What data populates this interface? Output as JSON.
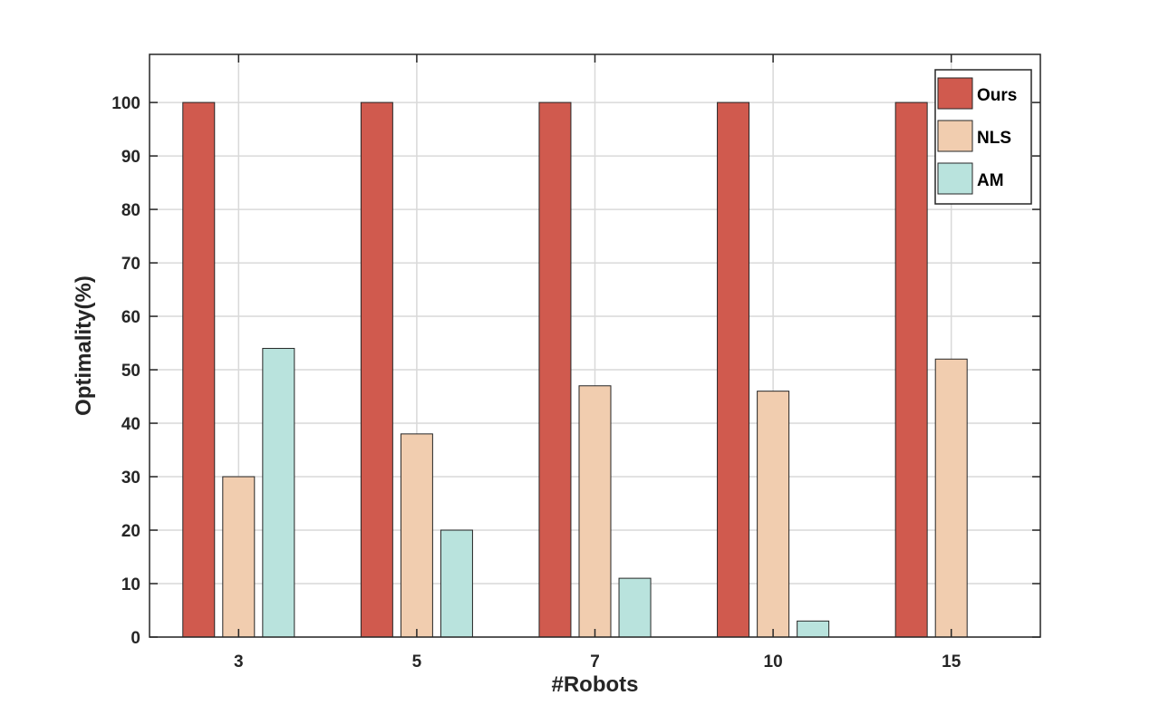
{
  "chart_data": {
    "type": "bar",
    "xlabel": "#Robots",
    "ylabel": "Optimality(%)",
    "categories": [
      "3",
      "5",
      "7",
      "10",
      "15"
    ],
    "series": [
      {
        "name": "Ours",
        "values": [
          100,
          100,
          100,
          100,
          100
        ],
        "color": "#d05a4e"
      },
      {
        "name": "NLS",
        "values": [
          30,
          38,
          47,
          46,
          52
        ],
        "color": "#f1cdaf"
      },
      {
        "name": "AM",
        "values": [
          54,
          20,
          11,
          3,
          0
        ],
        "color": "#b9e3dd"
      }
    ],
    "ylim": [
      0,
      109
    ],
    "yticks": [
      0,
      10,
      20,
      30,
      40,
      50,
      60,
      70,
      80,
      90,
      100
    ],
    "grid": true,
    "legend_position": "top-right"
  }
}
